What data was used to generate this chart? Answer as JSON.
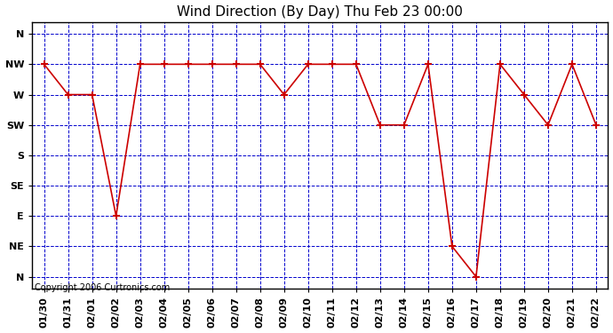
{
  "title": "Wind Direction (By Day) Thu Feb 23 00:00",
  "copyright": "Copyright 2006 Curtronics.com",
  "background_color": "#ffffff",
  "plot_bg_color": "#ffffff",
  "line_color": "#cc0000",
  "marker_color": "#cc0000",
  "grid_color": "#0000cc",
  "x_labels": [
    "01/30",
    "01/31",
    "02/01",
    "02/02",
    "02/03",
    "02/04",
    "02/05",
    "02/06",
    "02/07",
    "02/08",
    "02/09",
    "02/10",
    "02/11",
    "02/12",
    "02/13",
    "02/14",
    "02/15",
    "02/16",
    "02/17",
    "02/18",
    "02/19",
    "02/20",
    "02/21",
    "02/22"
  ],
  "y_tick_positions": [
    0,
    1,
    2,
    3,
    4,
    5,
    6,
    7,
    8
  ],
  "y_tick_labels": [
    "N",
    "NW",
    "W",
    "SW",
    "S",
    "SE",
    "E",
    "NE",
    "N"
  ],
  "dir_values": [
    1,
    2,
    2,
    6,
    1,
    1,
    1,
    1,
    1,
    1,
    2,
    1,
    1,
    1,
    3,
    3,
    1,
    7,
    8,
    1,
    2,
    3,
    1,
    3
  ],
  "figsize": [
    6.9,
    3.75
  ],
  "dpi": 100,
  "title_fontsize": 11,
  "tick_fontsize": 8,
  "copyright_fontsize": 7
}
